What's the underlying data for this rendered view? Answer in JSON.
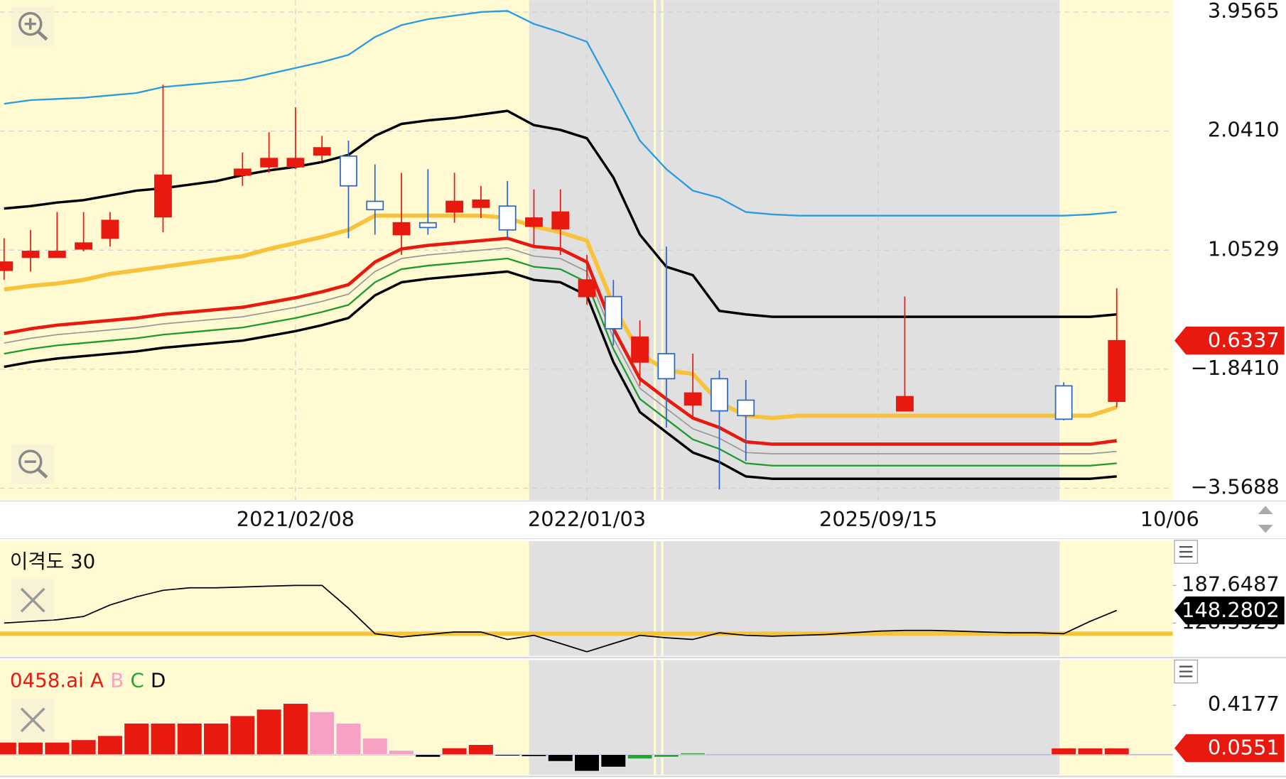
{
  "chart_data": [
    {
      "type": "candlestick",
      "categories": [
        null,
        null,
        null,
        null,
        null,
        null,
        null,
        null,
        null,
        null,
        null,
        "2021/02/08",
        null,
        null,
        null,
        null,
        null,
        null,
        null,
        null,
        null,
        null,
        "2022/01/03",
        null,
        null,
        null,
        null,
        null,
        null,
        null,
        null,
        null,
        null,
        "2025/09/15",
        null,
        null,
        null,
        null,
        null,
        null,
        null,
        null,
        null,
        null,
        "10/06"
      ],
      "ylim": [
        -0.1,
        4.1
      ],
      "yticks": [
        {
          "value": 4,
          "label": "3.9565"
        },
        {
          "value": 3,
          "label": "2.0410"
        },
        {
          "value": 2,
          "label": "1.0529"
        },
        {
          "value": 1,
          "label": "−1.8410"
        },
        {
          "value": 0,
          "label": "−3.5688"
        }
      ],
      "grid": true,
      "up_color": "#e8190f",
      "down_color": "#2a67c8",
      "open": [
        1.83,
        1.94,
        1.94,
        2.01,
        2.1,
        null,
        2.28,
        null,
        null,
        2.63,
        2.7,
        2.7,
        2.8,
        2.79,
        2.41,
        2.13,
        2.23,
        2.32,
        2.36,
        2.37,
        2.2,
        2.18,
        1.61,
        1.61,
        1.06,
        1.13,
        0.7,
        0.92,
        0.74,
        null,
        null,
        null,
        null,
        null,
        0.65,
        null,
        null,
        null,
        null,
        null,
        0.86,
        null,
        0.73,
        null,
        null
      ],
      "high": [
        2.1,
        2.17,
        2.32,
        2.32,
        2.32,
        null,
        3.39,
        null,
        null,
        2.82,
        2.99,
        3.2,
        2.96,
        2.92,
        2.72,
        2.65,
        2.68,
        2.65,
        2.54,
        2.58,
        2.51,
        2.51,
        1.96,
        1.75,
        1.41,
        2.03,
        1.13,
        0.99,
        0.91,
        null,
        null,
        null,
        null,
        null,
        1.61,
        null,
        null,
        null,
        null,
        null,
        0.89,
        null,
        1.68,
        null,
        null
      ],
      "low": [
        1.75,
        1.82,
        1.94,
        1.99,
        2.03,
        null,
        2.15,
        null,
        null,
        2.54,
        2.65,
        2.68,
        2.75,
        2.1,
        2.13,
        1.96,
        2.13,
        2.23,
        2.27,
        2.1,
        2.03,
        1.96,
        1.54,
        1.2,
        0.86,
        0.51,
        0.58,
        -0.01,
        0.23,
        null,
        null,
        null,
        null,
        null,
        0.65,
        null,
        null,
        null,
        null,
        null,
        0.57,
        null,
        0.68,
        null,
        null
      ],
      "close": [
        1.9,
        1.99,
        1.99,
        2.06,
        2.25,
        null,
        2.63,
        null,
        null,
        2.68,
        2.77,
        2.77,
        2.86,
        2.54,
        2.34,
        2.23,
        2.19,
        2.41,
        2.42,
        2.17,
        2.27,
        2.32,
        1.75,
        1.34,
        1.27,
        0.92,
        0.8,
        0.65,
        0.61,
        null,
        null,
        null,
        null,
        null,
        0.77,
        null,
        null,
        null,
        null,
        null,
        0.58,
        null,
        1.24,
        null,
        null
      ],
      "last_label": "0.6337",
      "lines": [
        {
          "color": "#2b9be0",
          "values": [
            3.23,
            3.26,
            3.27,
            3.28,
            3.3,
            3.32,
            3.37,
            3.39,
            3.41,
            3.43,
            3.48,
            3.53,
            3.58,
            3.64,
            3.79,
            3.89,
            3.94,
            3.97,
            4.0,
            4.01,
            3.9,
            3.83,
            3.75,
            3.34,
            2.92,
            2.68,
            2.5,
            2.44,
            2.32,
            2.3,
            2.29,
            2.29,
            2.29,
            2.29,
            2.29,
            2.29,
            2.29,
            2.29,
            2.29,
            2.29,
            2.29,
            2.3,
            2.32,
            null,
            null
          ]
        },
        {
          "color": "#000000",
          "values": [
            2.35,
            2.37,
            2.4,
            2.42,
            2.46,
            2.5,
            2.52,
            2.55,
            2.58,
            2.63,
            2.67,
            2.7,
            2.74,
            2.8,
            2.96,
            3.06,
            3.09,
            3.11,
            3.14,
            3.17,
            3.05,
            3.01,
            2.94,
            2.61,
            2.13,
            1.86,
            1.79,
            1.49,
            1.46,
            1.44,
            1.44,
            1.44,
            1.44,
            1.44,
            1.44,
            1.44,
            1.44,
            1.44,
            1.44,
            1.44,
            1.44,
            1.44,
            1.46,
            null,
            null
          ]
        },
        {
          "color": "#f8c23a",
          "values": [
            1.67,
            1.7,
            1.72,
            1.75,
            1.8,
            1.83,
            1.86,
            1.89,
            1.92,
            1.95,
            2.01,
            2.06,
            2.11,
            2.17,
            2.29,
            2.29,
            2.29,
            2.29,
            2.29,
            2.27,
            2.2,
            2.15,
            2.08,
            1.54,
            1.13,
            0.99,
            0.96,
            0.72,
            0.61,
            0.59,
            0.61,
            0.61,
            0.61,
            0.61,
            0.61,
            0.61,
            0.61,
            0.61,
            0.61,
            0.61,
            0.61,
            0.61,
            0.68,
            null,
            null
          ]
        },
        {
          "color": "#e8190f",
          "values": [
            1.3,
            1.34,
            1.37,
            1.39,
            1.41,
            1.43,
            1.46,
            1.48,
            1.5,
            1.52,
            1.56,
            1.6,
            1.65,
            1.71,
            1.9,
            2.01,
            2.04,
            2.06,
            2.08,
            2.1,
            2.03,
            2.01,
            1.9,
            1.34,
            0.92,
            0.75,
            0.59,
            0.51,
            0.39,
            0.37,
            0.37,
            0.37,
            0.37,
            0.37,
            0.37,
            0.37,
            0.37,
            0.37,
            0.37,
            0.37,
            0.37,
            0.37,
            0.4,
            null,
            null
          ]
        },
        {
          "color": "#999999",
          "values": [
            1.22,
            1.26,
            1.29,
            1.31,
            1.33,
            1.35,
            1.38,
            1.4,
            1.42,
            1.44,
            1.48,
            1.52,
            1.57,
            1.63,
            1.82,
            1.93,
            1.96,
            1.98,
            2.0,
            2.02,
            1.95,
            1.93,
            1.82,
            1.26,
            0.84,
            0.67,
            0.5,
            0.42,
            0.3,
            0.29,
            0.29,
            0.29,
            0.29,
            0.29,
            0.29,
            0.29,
            0.29,
            0.29,
            0.29,
            0.29,
            0.29,
            0.29,
            0.31,
            null,
            null
          ]
        },
        {
          "color": "#1e9a2e",
          "values": [
            1.13,
            1.17,
            1.2,
            1.22,
            1.24,
            1.26,
            1.29,
            1.31,
            1.33,
            1.35,
            1.39,
            1.43,
            1.48,
            1.54,
            1.73,
            1.84,
            1.87,
            1.89,
            1.91,
            1.93,
            1.86,
            1.84,
            1.73,
            1.17,
            0.75,
            0.58,
            0.41,
            0.33,
            0.21,
            0.19,
            0.19,
            0.19,
            0.19,
            0.19,
            0.19,
            0.19,
            0.19,
            0.19,
            0.19,
            0.19,
            0.19,
            0.19,
            0.21,
            null,
            null
          ]
        },
        {
          "color": "#000000",
          "values": [
            1.02,
            1.06,
            1.09,
            1.11,
            1.13,
            1.15,
            1.18,
            1.2,
            1.22,
            1.24,
            1.28,
            1.32,
            1.37,
            1.43,
            1.62,
            1.73,
            1.76,
            1.78,
            1.8,
            1.82,
            1.75,
            1.73,
            1.62,
            1.06,
            0.64,
            0.47,
            0.3,
            0.22,
            0.1,
            0.08,
            0.08,
            0.08,
            0.08,
            0.08,
            0.08,
            0.08,
            0.08,
            0.08,
            0.08,
            0.08,
            0.08,
            0.08,
            0.1,
            null,
            null
          ]
        }
      ]
    },
    {
      "type": "line",
      "title": "이격도 30",
      "ylim": [
        77,
        257
      ],
      "yticks": [
        187.6487,
        128.5525
      ],
      "color": "#000000",
      "values": [
        128.6,
        131.1,
        133.7,
        138.8,
        156.8,
        169.7,
        179.9,
        183.8,
        183.8,
        185.1,
        186.4,
        187.6,
        187.6,
        151.7,
        111.9,
        106.7,
        110.6,
        114.5,
        114.5,
        102.9,
        109.3,
        96.5,
        83.6,
        96.5,
        109.3,
        105.4,
        102.9,
        113.2,
        109.3,
        108.0,
        109.3,
        110.6,
        113.2,
        115.8,
        117.0,
        117.0,
        115.8,
        114.5,
        113.2,
        113.2,
        111.9,
        131.2,
        148.3,
        null,
        null
      ],
      "signal": 112,
      "signal_color": "#f8c23a",
      "last_value": 148.2802,
      "last_color": "#000000"
    },
    {
      "type": "bar",
      "title": "0458.ai",
      "title_color": "#e8190f",
      "ylim": [
        -0.17,
        0.8
      ],
      "yticks": [
        0.4177
      ],
      "series": [
        {
          "name": "A",
          "color": "#e8190f",
          "values": [
            0.104,
            0.104,
            0.104,
            0.125,
            0.16,
            0.265,
            0.265,
            0.265,
            0.265,
            0.328,
            0.383,
            0.432,
            null,
            null,
            null,
            null,
            null,
            0.056,
            0.084,
            null,
            null,
            null,
            null,
            null,
            null,
            null,
            null,
            null,
            null,
            null,
            null,
            null,
            null,
            null,
            null,
            null,
            null,
            null,
            null,
            null,
            0.0551,
            0.0551,
            0.0551,
            null,
            null
          ]
        },
        {
          "name": "B",
          "color": "#f7a1c4",
          "values": [
            null,
            null,
            null,
            null,
            null,
            null,
            null,
            null,
            null,
            null,
            null,
            null,
            0.362,
            0.265,
            0.139,
            0.035,
            null,
            null,
            null,
            null,
            null,
            null,
            null,
            null,
            null,
            null,
            null,
            null,
            null,
            null,
            null,
            null,
            null,
            null,
            null,
            null,
            null,
            null,
            null,
            null,
            null,
            null,
            null,
            null,
            null
          ]
        },
        {
          "name": "C",
          "color": "#1eaa2e",
          "values": [
            null,
            null,
            null,
            null,
            null,
            null,
            null,
            null,
            null,
            null,
            null,
            null,
            null,
            null,
            null,
            null,
            null,
            null,
            null,
            null,
            null,
            null,
            null,
            null,
            -0.035,
            -0.02,
            0.014,
            null,
            null,
            null,
            null,
            null,
            null,
            null,
            null,
            null,
            null,
            null,
            null,
            null,
            null,
            null,
            null,
            null,
            null
          ]
        },
        {
          "name": "D",
          "color": "#000000",
          "values": [
            null,
            null,
            null,
            null,
            null,
            null,
            null,
            null,
            null,
            null,
            null,
            null,
            null,
            null,
            null,
            null,
            -0.02,
            null,
            null,
            -0.01,
            -0.014,
            -0.056,
            -0.139,
            -0.104,
            null,
            null,
            null,
            null,
            null,
            null,
            null,
            null,
            null,
            null,
            null,
            null,
            null,
            null,
            null,
            null,
            null,
            null,
            null,
            null,
            null
          ]
        }
      ],
      "last_value": 0.0551,
      "last_color": "#e8190f"
    }
  ]
}
